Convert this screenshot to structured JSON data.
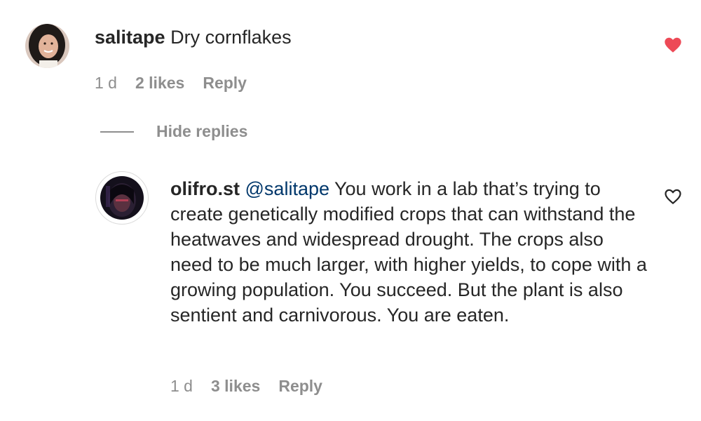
{
  "comment": {
    "username": "salitape",
    "text": "Dry cornflakes",
    "time": "1 d",
    "likes": "2 likes",
    "reply_label": "Reply",
    "liked": true,
    "like_color": "#ed4956",
    "like_icon": "heart-filled-icon"
  },
  "hide_replies_label": "Hide replies",
  "reply": {
    "username": "olifro.st",
    "mention": "@salitape",
    "text": "You work in a lab that’s trying to create genetically modified crops that can withstand the heatwaves and widespread drought. The crops also need to be much larger, with higher yields, to cope with a growing population. You succeed. But the plant is also sentient and carnivorous. You are eaten.",
    "time": "1 d",
    "likes": "3 likes",
    "reply_label": "Reply",
    "liked": false,
    "like_icon": "heart-outline-icon"
  }
}
